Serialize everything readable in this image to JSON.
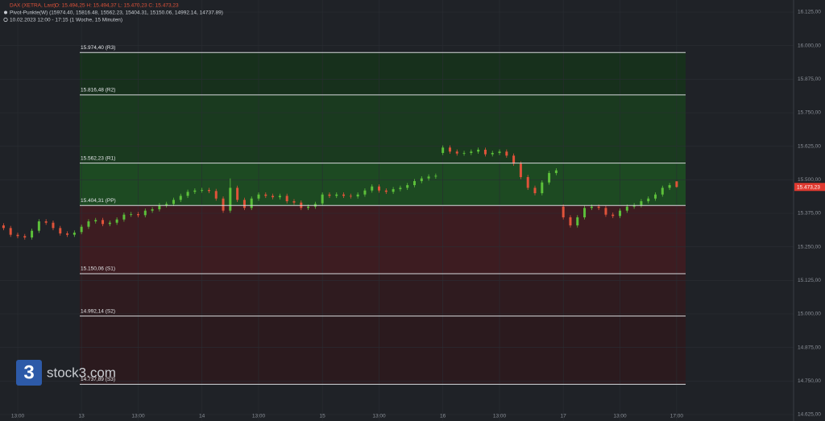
{
  "chart_data": {
    "type": "candlestick",
    "title": "DAX (XETRA, Last)",
    "ohlc_text": "O: 15.494,25  H: 15.494,37  L: 15.470,23  C: 15.473,23",
    "indicator": "Pivot-Punkte(W)  (15974.40, 15816.48, 15562.23, 15404.31, 15150.06, 14992.14, 14737.89)",
    "subtitle": "10.02.2023 12:00 - 17:15   (1 Woche, 15 Minuten)",
    "watermark": "stock3.com",
    "logo": "3",
    "up_color": "#5cbf3a",
    "down_color": "#e0533a",
    "xlim": [
      -1,
      223
    ],
    "ylim": [
      14601,
      16170
    ],
    "xticks": [
      {
        "value": 4,
        "label": "13:00"
      },
      {
        "value": 22,
        "label": "13"
      },
      {
        "value": 38,
        "label": "13:00"
      },
      {
        "value": 56,
        "label": "14"
      },
      {
        "value": 72,
        "label": "13:00"
      },
      {
        "value": 90,
        "label": "15"
      },
      {
        "value": 106,
        "label": "13:00"
      },
      {
        "value": 124,
        "label": "16"
      },
      {
        "value": 140,
        "label": "13:00"
      },
      {
        "value": 158,
        "label": "17"
      },
      {
        "value": 174,
        "label": "13:00"
      },
      {
        "value": 190,
        "label": "17:00"
      }
    ],
    "yticks": [
      {
        "value": 16125,
        "label": "16.125,00"
      },
      {
        "value": 16000,
        "label": "16.000,00"
      },
      {
        "value": 15875,
        "label": "15.875,00"
      },
      {
        "value": 15750,
        "label": "15.750,00"
      },
      {
        "value": 15625,
        "label": "15.625,00"
      },
      {
        "value": 15500,
        "label": "15.500,00"
      },
      {
        "value": 15375,
        "label": "15.375,00"
      },
      {
        "value": 15250,
        "label": "15.250,00"
      },
      {
        "value": 15125,
        "label": "15.125,00"
      },
      {
        "value": 15000,
        "label": "15.000,00"
      },
      {
        "value": 14875,
        "label": "14.875,00"
      },
      {
        "value": 14750,
        "label": "14.750,00"
      },
      {
        "value": 14625,
        "label": "14.625,00"
      }
    ],
    "last_price": {
      "value": 15473.23,
      "label": "15.473,23"
    },
    "pivots": [
      {
        "value": 15974.4,
        "label": "15.974,40 (R3)"
      },
      {
        "value": 15816.48,
        "label": "15.816,48 (R2)"
      },
      {
        "value": 15562.23,
        "label": "15.562,23 (R1)"
      },
      {
        "value": 15404.31,
        "label": "15.404,31 (PP)"
      },
      {
        "value": 15150.06,
        "label": "15.150,06 (S1)"
      },
      {
        "value": 14992.14,
        "label": "14.992,14 (S2)"
      },
      {
        "value": 14737.89,
        "label": "14.737,89 (S3)"
      }
    ],
    "x": [
      0,
      2,
      4,
      6,
      8,
      10,
      12,
      14,
      16,
      18,
      20,
      22,
      24,
      26,
      28,
      30,
      32,
      34,
      36,
      38,
      40,
      42,
      44,
      46,
      48,
      50,
      52,
      54,
      56,
      58,
      60,
      62,
      64,
      66,
      68,
      70,
      72,
      74,
      76,
      78,
      80,
      82,
      84,
      86,
      88,
      90,
      92,
      94,
      96,
      98,
      100,
      102,
      104,
      106,
      108,
      110,
      112,
      114,
      116,
      118,
      120,
      122,
      124,
      126,
      128,
      130,
      132,
      134,
      136,
      138,
      140,
      142,
      144,
      146,
      148,
      150,
      152,
      154,
      156,
      158,
      160,
      162,
      164,
      166,
      168,
      170,
      172,
      174,
      176,
      178,
      180,
      182,
      184,
      186,
      188,
      190
    ],
    "open": [
      15330,
      15320,
      15295,
      15290,
      15285,
      15310,
      15345,
      15340,
      15320,
      15300,
      15295,
      15305,
      15325,
      15345,
      15350,
      15335,
      15340,
      15352,
      15370,
      15372,
      15368,
      15385,
      15390,
      15405,
      15410,
      15425,
      15440,
      15455,
      15460,
      15462,
      15458,
      15430,
      15385,
      15470,
      15425,
      15395,
      15430,
      15445,
      15440,
      15435,
      15440,
      15420,
      15415,
      15395,
      15400,
      15412,
      15445,
      15440,
      15445,
      15440,
      15438,
      15445,
      15460,
      15475,
      15460,
      15455,
      15465,
      15470,
      15480,
      15495,
      15505,
      15512,
      15600,
      15620,
      15605,
      15598,
      15600,
      15605,
      15612,
      15595,
      15600,
      15605,
      15590,
      15560,
      15510,
      15470,
      15450,
      15490,
      15525,
      15400,
      15360,
      15330,
      15360,
      15395,
      15400,
      15395,
      15370,
      15365,
      15385,
      15400,
      15405,
      15420,
      15430,
      15445,
      15470,
      15494.25
    ],
    "high": [
      15338,
      15328,
      15303,
      15298,
      15318,
      15353,
      15353,
      15348,
      15328,
      15308,
      15311,
      15333,
      15353,
      15358,
      15358,
      15348,
      15360,
      15378,
      15380,
      15380,
      15393,
      15398,
      15413,
      15418,
      15433,
      15448,
      15463,
      15468,
      15470,
      15470,
      15466,
      15438,
      15505,
      15478,
      15433,
      15438,
      15453,
      15453,
      15448,
      15448,
      15448,
      15428,
      15423,
      15408,
      15418,
      15453,
      15453,
      15453,
      15453,
      15448,
      15453,
      15468,
      15483,
      15483,
      15468,
      15473,
      15478,
      15488,
      15503,
      15513,
      15520,
      15523,
      15628,
      15628,
      15613,
      15608,
      15613,
      15620,
      15620,
      15608,
      15613,
      15613,
      15598,
      15568,
      15518,
      15478,
      15498,
      15533,
      15543,
      15408,
      15368,
      15368,
      15403,
      15408,
      15408,
      15403,
      15378,
      15393,
      15408,
      15413,
      15428,
      15438,
      15453,
      15478,
      15488,
      15494.37
    ],
    "low": [
      15312,
      15287,
      15282,
      15277,
      15277,
      15302,
      15332,
      15312,
      15292,
      15287,
      15287,
      15297,
      15317,
      15337,
      15327,
      15327,
      15332,
      15344,
      15362,
      15360,
      15360,
      15377,
      15382,
      15397,
      15402,
      15417,
      15432,
      15447,
      15452,
      15450,
      15422,
      15377,
      15377,
      15417,
      15387,
      15387,
      15422,
      15432,
      15427,
      15427,
      15412,
      15407,
      15387,
      15387,
      15392,
      15404,
      15432,
      15432,
      15432,
      15430,
      15430,
      15437,
      15452,
      15452,
      15447,
      15447,
      15457,
      15462,
      15472,
      15487,
      15497,
      15504,
      15592,
      15597,
      15590,
      15590,
      15592,
      15597,
      15587,
      15587,
      15592,
      15582,
      15552,
      15502,
      15462,
      15442,
      15442,
      15482,
      15517,
      15352,
      15322,
      15322,
      15352,
      15387,
      15387,
      15362,
      15357,
      15357,
      15377,
      15392,
      15397,
      15412,
      15422,
      15437,
      15462,
      15470.23
    ],
    "close": [
      15320,
      15295,
      15290,
      15285,
      15310,
      15345,
      15340,
      15320,
      15300,
      15295,
      15303,
      15325,
      15345,
      15350,
      15335,
      15340,
      15352,
      15370,
      15372,
      15368,
      15385,
      15390,
      15405,
      15410,
      15425,
      15440,
      15455,
      15460,
      15462,
      15458,
      15430,
      15385,
      15470,
      15425,
      15395,
      15430,
      15445,
      15440,
      15435,
      15440,
      15420,
      15415,
      15395,
      15400,
      15410,
      15445,
      15440,
      15445,
      15440,
      15438,
      15445,
      15460,
      15475,
      15460,
      15455,
      15465,
      15470,
      15480,
      15495,
      15505,
      15512,
      15515,
      15620,
      15605,
      15598,
      15600,
      15605,
      15612,
      15595,
      15600,
      15605,
      15590,
      15560,
      15510,
      15470,
      15450,
      15490,
      15525,
      15535,
      15360,
      15330,
      15360,
      15395,
      15400,
      15395,
      15370,
      15365,
      15385,
      15400,
      15405,
      15420,
      15430,
      15445,
      15470,
      15480,
      15473.23
    ]
  }
}
